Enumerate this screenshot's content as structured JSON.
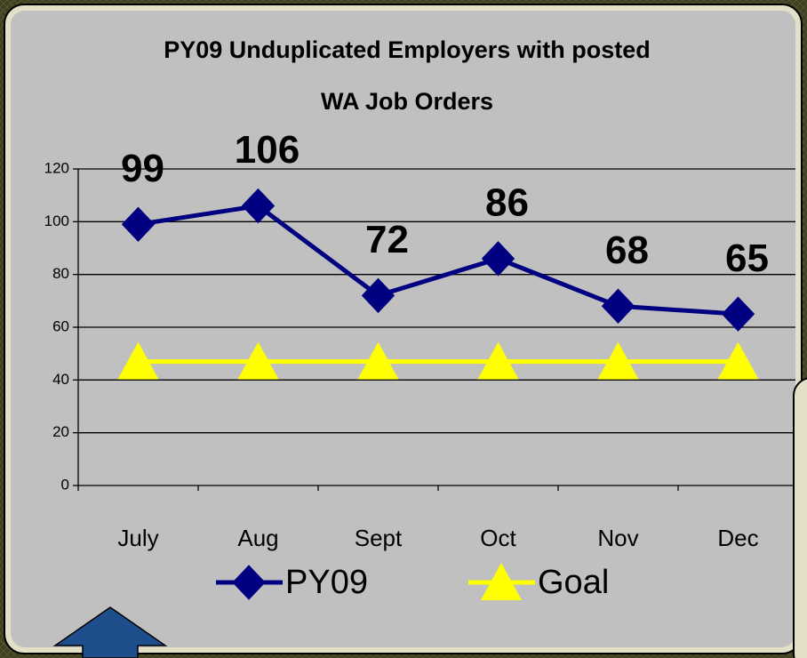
{
  "chart_data": {
    "type": "line",
    "title": [
      "PY09 Unduplicated Employers with posted",
      "WA Job Orders"
    ],
    "categories": [
      "July",
      "Aug",
      "Sept",
      "Oct",
      "Nov",
      "Dec"
    ],
    "series": [
      {
        "name": "PY09",
        "color": "#000080",
        "marker": "diamond",
        "values": [
          99,
          106,
          72,
          86,
          68,
          65
        ]
      },
      {
        "name": "Goal",
        "color": "#ffff00",
        "marker": "triangle",
        "values": [
          47,
          47,
          47,
          47,
          47,
          47
        ]
      }
    ],
    "data_labels_series": 0,
    "ylim": [
      0,
      120
    ],
    "yticks": [
      0,
      20,
      40,
      60,
      80,
      100,
      120
    ],
    "grid": true
  }
}
